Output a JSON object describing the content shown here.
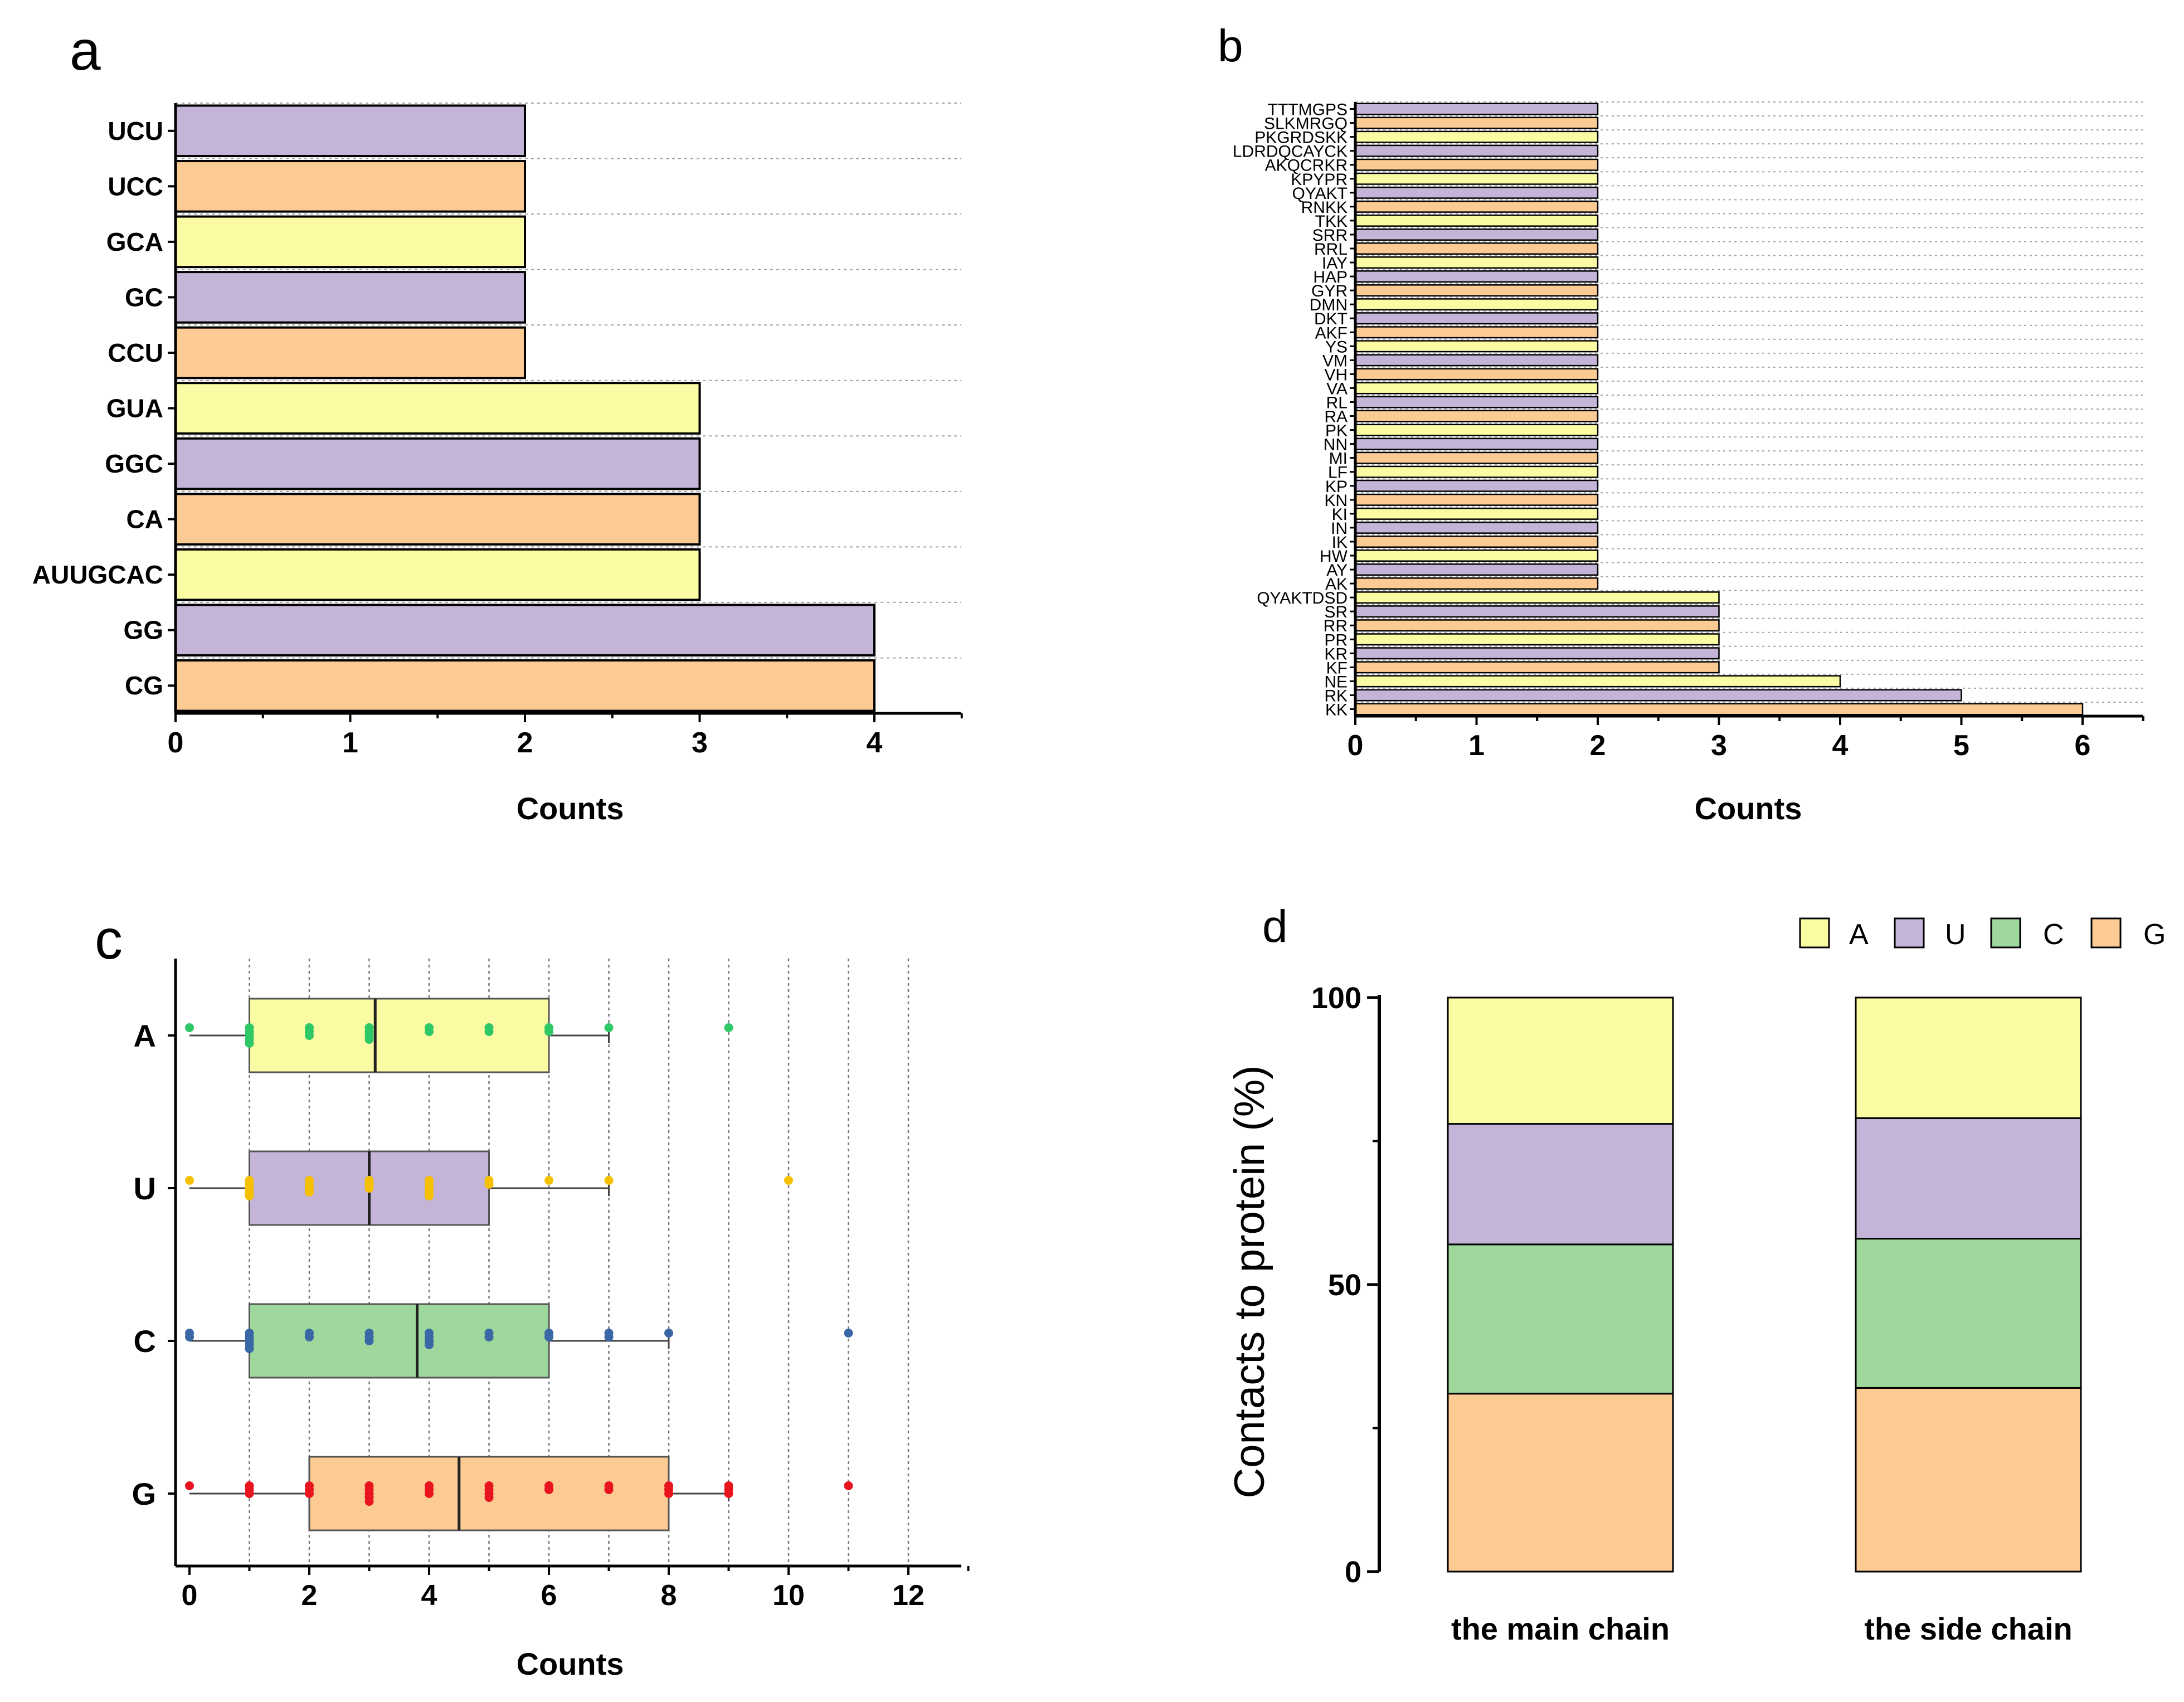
{
  "panels": {
    "a": {
      "letter": "a",
      "xlabel": "Counts",
      "ticks": [
        "0",
        "1",
        "2",
        "3",
        "4"
      ]
    },
    "b": {
      "letter": "b",
      "xlabel": "Counts",
      "ticks": [
        "0",
        "1",
        "2",
        "3",
        "4",
        "5",
        "6"
      ]
    },
    "c": {
      "letter": "c",
      "xlabel": "Counts",
      "ticks": [
        "0",
        "2",
        "4",
        "6",
        "8",
        "10",
        "12"
      ]
    },
    "d": {
      "letter": "d",
      "ylabel": "Contacts to protein (%)",
      "ticks": [
        "0",
        "50",
        "100"
      ],
      "legend": [
        "A",
        "U",
        "C",
        "G"
      ]
    }
  },
  "colors": {
    "purple": "#c4b4d8",
    "orange": "#fccb94",
    "yellow": "#fbfba4",
    "green": "#9fd89c",
    "dot_A": "#2ec866",
    "dot_U": "#f5c000",
    "dot_C": "#3a67a6",
    "dot_G": "#e8141e",
    "axis": "#000000",
    "grid": "#a0a0a0"
  },
  "chart_data": [
    {
      "panel": "a",
      "type": "bar",
      "orientation": "horizontal",
      "categories": [
        "UCU",
        "UCC",
        "GCA",
        "GC",
        "CCU",
        "GUA",
        "GGC",
        "CA",
        "AUUGCAC",
        "GG",
        "CG"
      ],
      "values": [
        2,
        2,
        2,
        2,
        2,
        3,
        3,
        3,
        3,
        4,
        4
      ],
      "bar_colors": [
        "purple",
        "orange",
        "yellow",
        "purple",
        "orange",
        "yellow",
        "purple",
        "orange",
        "yellow",
        "purple",
        "orange"
      ],
      "xlabel": "Counts",
      "xlim": [
        0,
        4.5
      ]
    },
    {
      "panel": "b",
      "type": "bar",
      "orientation": "horizontal",
      "categories": [
        "TTTMGPS",
        "SLKMRGQ",
        "PKGRDSKK",
        "LDRDQCAYCK",
        "AKQCRKR",
        "KPYPR",
        "QYAKT",
        "RNKK",
        "TKK",
        "SRR",
        "RRL",
        "IAY",
        "HAP",
        "GYR",
        "DMN",
        "DKT",
        "AKF",
        "YS",
        "VM",
        "VH",
        "VA",
        "RL",
        "RA",
        "PK",
        "NN",
        "MI",
        "LF",
        "KP",
        "KN",
        "KI",
        "IN",
        "IK",
        "HW",
        "AY",
        "AK",
        "QYAKTDSD",
        "SR",
        "RR",
        "PR",
        "KR",
        "KF",
        "NE",
        "RK",
        "KK"
      ],
      "values": [
        2,
        2,
        2,
        2,
        2,
        2,
        2,
        2,
        2,
        2,
        2,
        2,
        2,
        2,
        2,
        2,
        2,
        2,
        2,
        2,
        2,
        2,
        2,
        2,
        2,
        2,
        2,
        2,
        2,
        2,
        2,
        2,
        2,
        2,
        2,
        3,
        3,
        3,
        3,
        3,
        3,
        4,
        5,
        6
      ],
      "xlabel": "Counts",
      "xlim": [
        0,
        6.5
      ]
    },
    {
      "panel": "c",
      "type": "box",
      "orientation": "horizontal",
      "categories": [
        "A",
        "U",
        "C",
        "G"
      ],
      "boxes": [
        {
          "name": "A",
          "q1": 1,
          "median": 3.1,
          "q3": 6,
          "whisker_low": 0,
          "whisker_high": 7,
          "points": [
            0,
            1,
            1,
            1,
            1,
            1,
            2,
            2,
            2,
            3,
            3,
            3,
            3,
            4,
            4,
            5,
            5,
            6,
            6,
            7,
            9
          ]
        },
        {
          "name": "U",
          "q1": 1,
          "median": 3,
          "q3": 5,
          "whisker_low": 0,
          "whisker_high": 7,
          "points": [
            0,
            1,
            1,
            1,
            1,
            1,
            2,
            2,
            2,
            2,
            3,
            3,
            3,
            4,
            4,
            4,
            4,
            4,
            5,
            5,
            6,
            7,
            10
          ]
        },
        {
          "name": "C",
          "q1": 1,
          "median": 3.8,
          "q3": 6,
          "whisker_low": 0,
          "whisker_high": 8,
          "points": [
            0,
            0,
            1,
            1,
            1,
            1,
            1,
            2,
            2,
            3,
            3,
            3,
            4,
            4,
            4,
            4,
            5,
            5,
            6,
            6,
            7,
            7,
            8,
            11
          ]
        },
        {
          "name": "G",
          "q1": 2,
          "median": 4.5,
          "q3": 8,
          "whisker_low": 0,
          "whisker_high": 9,
          "points": [
            0,
            1,
            1,
            1,
            2,
            2,
            2,
            3,
            3,
            3,
            3,
            3,
            4,
            4,
            4,
            5,
            5,
            5,
            5,
            6,
            6,
            7,
            7,
            8,
            8,
            8,
            9,
            9,
            9,
            11
          ]
        }
      ],
      "box_colors": [
        "yellow",
        "purple",
        "green",
        "orange"
      ],
      "dot_colors": [
        "dot_A",
        "dot_U",
        "dot_C",
        "dot_G"
      ],
      "xlabel": "Counts",
      "xlim": [
        0,
        13
      ]
    },
    {
      "panel": "d",
      "type": "stacked_bar",
      "categories": [
        "the main chain",
        "the side chain"
      ],
      "series": [
        {
          "name": "G",
          "color": "orange",
          "values": [
            31,
            32
          ]
        },
        {
          "name": "C",
          "color": "green",
          "values": [
            26,
            26
          ]
        },
        {
          "name": "U",
          "color": "purple",
          "values": [
            21,
            21
          ]
        },
        {
          "name": "A",
          "color": "yellow",
          "values": [
            22,
            21
          ]
        }
      ],
      "ylabel": "Contacts to protein (%)",
      "ylim": [
        0,
        100
      ]
    }
  ]
}
